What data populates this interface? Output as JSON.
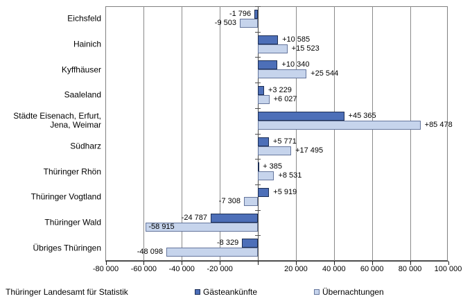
{
  "chart_data": {
    "type": "bar",
    "orientation": "horizontal",
    "categories": [
      "Eichsfeld",
      "Hainich",
      "Kyffhäuser",
      "Saaleland",
      "Städte Eisenach, Erfurt,\nJena, Weimar",
      "Südharz",
      "Thüringer Rhön",
      "Thüringer Vogtland",
      "Thüringer Wald",
      "Übriges Thüringen"
    ],
    "series": [
      {
        "name": "Gästeankünfte",
        "color": "#4d6fb8",
        "border_color": "#1c2e54",
        "values": [
          -1796,
          10585,
          10340,
          3229,
          45365,
          5771,
          385,
          5919,
          -24787,
          -8329
        ],
        "labels": [
          "-1 796",
          "+10 585",
          "+10 340",
          "+3 229",
          "+45 365",
          "+5 771",
          "+ 385",
          "+5 919",
          "-24 787",
          "-8 329"
        ],
        "inside_label_indices": []
      },
      {
        "name": "Übernachtungen",
        "color": "#c6d4ec",
        "border_color": "#64759c",
        "values": [
          -9503,
          15523,
          25544,
          6027,
          85478,
          17495,
          8531,
          -7308,
          -58915,
          -48098
        ],
        "labels": [
          "-9 503",
          "+15 523",
          "+25 544",
          "+6 027",
          "+85 478",
          "+17 495",
          "+8 531",
          "-7 308",
          "-58 915",
          "-48 098"
        ],
        "inside_label_indices": [
          8
        ]
      }
    ],
    "xlim": [
      -80000,
      100000
    ],
    "x_gridline_values": [
      -80000,
      -60000,
      -40000,
      -20000,
      0,
      20000,
      40000,
      60000,
      80000,
      100000
    ],
    "x_ticks": [
      {
        "value": -80000,
        "label": "-80 000"
      },
      {
        "value": -60000,
        "label": "-60 000"
      },
      {
        "value": -40000,
        "label": "-40 000"
      },
      {
        "value": -20000,
        "label": "-20 000"
      },
      {
        "value": 20000,
        "label": "20 000"
      },
      {
        "value": 40000,
        "label": "40 000"
      },
      {
        "value": 60000,
        "label": "60 000"
      },
      {
        "value": 80000,
        "label": "80 000"
      },
      {
        "value": 100000,
        "label": "100 000"
      }
    ],
    "grid": "vertical",
    "legend_position": "bottom"
  },
  "footer": {
    "source": "Thüringer  Landesamt für Statistik"
  },
  "colors": {
    "background": "#ffffff",
    "gridline": "#8a8a8a",
    "zero_axis": "#4d4d4d",
    "plot_border": "#808080",
    "bottom_axis": "#1a1a1a",
    "text": "#000000"
  }
}
